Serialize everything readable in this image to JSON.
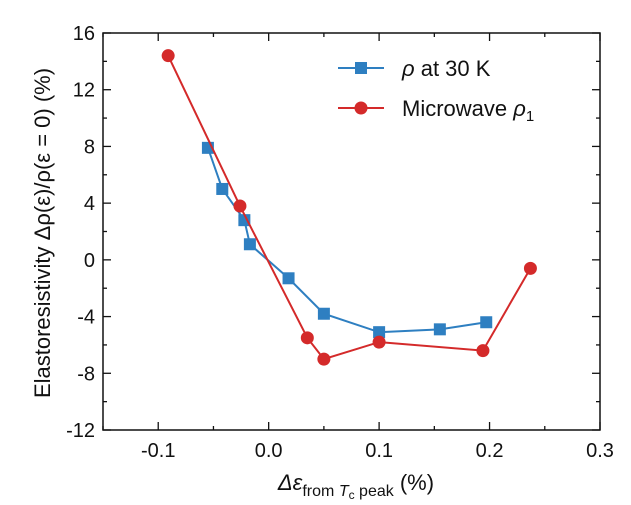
{
  "chart_data": {
    "type": "line",
    "xlabel": "Δε from Tc peak (%)",
    "xlabel_parts": {
      "main": "Δε",
      "sub_from": "from ",
      "sub_T": "T",
      "sub_c": "c",
      "sub_peak": " peak",
      "unit": " (%)"
    },
    "ylabel": "Elastoresistivity Δρ(ε)/ρ(ε = 0) (%)",
    "xlim": [
      -0.15,
      0.3
    ],
    "ylim": [
      -12,
      16
    ],
    "xticks": [
      -0.1,
      0.0,
      0.1,
      0.2,
      0.3
    ],
    "xtick_labels": [
      "-0.1",
      "0.0",
      "0.1",
      "0.2",
      "0.3"
    ],
    "yticks": [
      -12,
      -8,
      -4,
      0,
      4,
      8,
      12,
      16
    ],
    "ytick_labels": [
      "-12",
      "-8",
      "-4",
      "0",
      "4",
      "8",
      "12",
      "16"
    ],
    "grid": false,
    "legend_position": "top-right",
    "series": [
      {
        "name": "ρ at 30 K",
        "legend_parts": {
          "main": "ρ",
          "rest": " at 30 K",
          "sub": ""
        },
        "color": "#2e7fc1",
        "marker": "square",
        "x": [
          -0.055,
          -0.042,
          -0.022,
          -0.017,
          0.018,
          0.05,
          0.1,
          0.155,
          0.197
        ],
        "y": [
          7.9,
          5.0,
          2.8,
          1.1,
          -1.3,
          -3.8,
          -5.1,
          -4.9,
          -4.4
        ]
      },
      {
        "name": "Microwave ρ1",
        "legend_parts": {
          "main": "Microwave ",
          "rest": "ρ",
          "sub": "1"
        },
        "color": "#d42a2a",
        "marker": "circle",
        "x": [
          -0.091,
          -0.026,
          0.035,
          0.05,
          0.1,
          0.194,
          0.237
        ],
        "y": [
          14.4,
          3.8,
          -5.5,
          -7.0,
          -5.8,
          -6.4,
          -0.6
        ]
      }
    ]
  }
}
